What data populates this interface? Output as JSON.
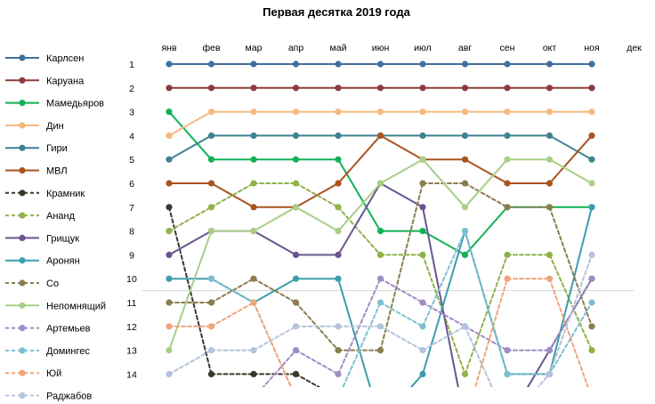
{
  "chart_data": {
    "type": "line",
    "title": "Первая десятка 2019 года",
    "categories": [
      "янв",
      "фев",
      "мар",
      "апр",
      "май",
      "июн",
      "июл",
      "авг",
      "сен",
      "окт",
      "ноя",
      "дек"
    ],
    "y_ticks": [
      "1",
      "2",
      "3",
      "4",
      "5",
      "6",
      "7",
      "8",
      "9",
      "10",
      "11",
      "12",
      "13",
      "14"
    ],
    "y_axis": "rank, 1 at top (reversed)",
    "ylim": [
      1,
      14
    ],
    "cutoff_line_after_rank": 10,
    "legend_position": "left",
    "series": [
      {
        "name": "Карлсен",
        "color": "#3f6f9f",
        "dashed": false,
        "values": [
          1,
          1,
          1,
          1,
          1,
          1,
          1,
          1,
          1,
          1,
          1,
          null
        ]
      },
      {
        "name": "Каруана",
        "color": "#8e3b3b",
        "dashed": false,
        "values": [
          2,
          2,
          2,
          2,
          2,
          2,
          2,
          2,
          2,
          2,
          2,
          null
        ]
      },
      {
        "name": "Мамедьяров",
        "color": "#13b157",
        "dashed": false,
        "values": [
          3,
          5,
          5,
          5,
          5,
          8,
          8,
          9,
          7,
          7,
          7,
          null
        ]
      },
      {
        "name": "Дин",
        "color": "#f5b97f",
        "dashed": false,
        "values": [
          4,
          3,
          3,
          3,
          3,
          3,
          3,
          3,
          3,
          3,
          3,
          null
        ]
      },
      {
        "name": "Гири",
        "color": "#3d8390",
        "dashed": false,
        "values": [
          5,
          4,
          4,
          4,
          4,
          4,
          4,
          4,
          4,
          4,
          5,
          null
        ]
      },
      {
        "name": "МВЛ",
        "color": "#a8541f",
        "dashed": false,
        "values": [
          6,
          6,
          7,
          7,
          6,
          4,
          5,
          5,
          6,
          6,
          4,
          null
        ]
      },
      {
        "name": "Крамник",
        "color": "#3a3a2c",
        "dashed": true,
        "values": [
          7,
          14,
          14,
          14,
          15,
          null,
          null,
          null,
          null,
          null,
          null,
          null
        ]
      },
      {
        "name": "Ананд",
        "color": "#8fb249",
        "dashed": true,
        "values": [
          8,
          7,
          6,
          6,
          7,
          9,
          9,
          14,
          9,
          9,
          13,
          null
        ]
      },
      {
        "name": "Грищук",
        "color": "#6a5590",
        "dashed": false,
        "values": [
          9,
          8,
          8,
          9,
          9,
          6,
          7,
          16,
          16,
          13,
          10,
          null
        ]
      },
      {
        "name": "Аронян",
        "color": "#3d9db0",
        "dashed": false,
        "values": [
          10,
          10,
          11,
          10,
          10,
          16,
          14,
          8,
          14,
          14,
          7,
          null
        ]
      },
      {
        "name": "Со",
        "color": "#8b7d4f",
        "dashed": true,
        "values": [
          11,
          11,
          10,
          11,
          13,
          13,
          6,
          6,
          7,
          7,
          12,
          null
        ]
      },
      {
        "name": "Непомнящий",
        "color": "#a9cf87",
        "dashed": false,
        "values": [
          13,
          8,
          8,
          7,
          8,
          6,
          5,
          7,
          5,
          5,
          6,
          null
        ]
      },
      {
        "name": "Артемьев",
        "color": "#a08cc4",
        "dashed": true,
        "values": [
          null,
          null,
          15,
          13,
          14,
          10,
          11,
          12,
          13,
          13,
          10,
          null
        ]
      },
      {
        "name": "Домингес",
        "color": "#7fbfd2",
        "dashed": true,
        "values": [
          null,
          10,
          11,
          15,
          15,
          11,
          12,
          8,
          14,
          14,
          11,
          null
        ]
      },
      {
        "name": "Юй",
        "color": "#f0a57a",
        "dashed": true,
        "values": [
          12,
          12,
          11,
          15,
          null,
          null,
          null,
          16,
          10,
          10,
          15,
          null
        ]
      },
      {
        "name": "Раджабов",
        "color": "#b4c3dc",
        "dashed": true,
        "values": [
          14,
          13,
          13,
          12,
          12,
          12,
          13,
          12,
          16,
          14,
          9,
          null
        ]
      }
    ]
  }
}
